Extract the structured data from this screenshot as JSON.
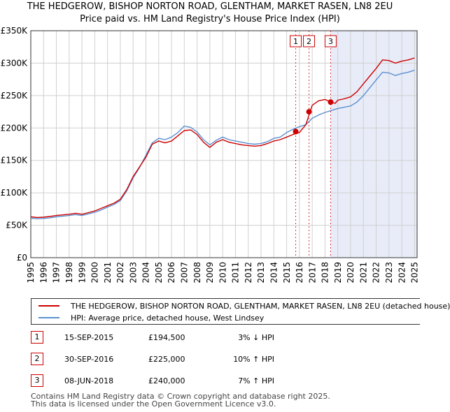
{
  "header": {
    "title_line1": "THE HEDGEROW, BISHOP NORTON ROAD, GLENTHAM, MARKET RASEN, LN8 2EU",
    "title_line2": "Price paid vs. HM Land Registry's House Price Index (HPI)"
  },
  "chart_data": {
    "type": "line",
    "x_start": 1995,
    "x_end": 2025.2,
    "xlim": [
      1995,
      2025.2
    ],
    "ylim": [
      0,
      350000
    ],
    "yticks": [
      0,
      50000,
      100000,
      150000,
      200000,
      250000,
      300000,
      350000
    ],
    "ytick_labels": [
      "£0",
      "£50K",
      "£100K",
      "£150K",
      "£200K",
      "£250K",
      "£300K",
      "£350K"
    ],
    "xtick_labels": [
      "1995",
      "1996",
      "1997",
      "1998",
      "1999",
      "2000",
      "2001",
      "2002",
      "2003",
      "2004",
      "2005",
      "2006",
      "2007",
      "2008",
      "2009",
      "2010",
      "2011",
      "2012",
      "2013",
      "2014",
      "2015",
      "2016",
      "2017",
      "2018",
      "2019",
      "2020",
      "2021",
      "2022",
      "2023",
      "2024",
      "2025"
    ],
    "grid": true,
    "shaded_from": 2018.44,
    "series": [
      {
        "name": "THE HEDGEROW, BISHOP NORTON ROAD, GLENTHAM, MARKET RASEN, LN8 2EU (detached house)",
        "color": "#cc0000",
        "points": [
          [
            1995,
            63000
          ],
          [
            1995.5,
            62000
          ],
          [
            1996,
            62500
          ],
          [
            1996.5,
            63500
          ],
          [
            1997,
            65000
          ],
          [
            1997.5,
            66000
          ],
          [
            1998,
            67000
          ],
          [
            1998.5,
            68500
          ],
          [
            1999,
            67000
          ],
          [
            1999.5,
            69500
          ],
          [
            2000,
            72000
          ],
          [
            2000.5,
            76000
          ],
          [
            2001,
            80000
          ],
          [
            2001.5,
            84000
          ],
          [
            2002,
            90000
          ],
          [
            2002.5,
            105000
          ],
          [
            2003,
            125000
          ],
          [
            2003.5,
            140000
          ],
          [
            2004,
            155000
          ],
          [
            2004.5,
            175000
          ],
          [
            2005,
            180000
          ],
          [
            2005.5,
            177000
          ],
          [
            2006,
            180000
          ],
          [
            2006.5,
            188000
          ],
          [
            2007,
            196000
          ],
          [
            2007.5,
            197000
          ],
          [
            2008,
            190000
          ],
          [
            2008.5,
            178000
          ],
          [
            2009,
            170000
          ],
          [
            2009.5,
            178000
          ],
          [
            2010,
            182000
          ],
          [
            2010.5,
            178000
          ],
          [
            2011,
            176000
          ],
          [
            2011.5,
            174000
          ],
          [
            2012,
            173000
          ],
          [
            2012.5,
            172000
          ],
          [
            2013,
            173000
          ],
          [
            2013.5,
            176000
          ],
          [
            2014,
            180000
          ],
          [
            2014.5,
            182000
          ],
          [
            2015,
            186000
          ],
          [
            2015.5,
            190000
          ],
          [
            2016,
            193000
          ],
          [
            2016.5,
            205000
          ],
          [
            2017,
            235000
          ],
          [
            2017.5,
            242000
          ],
          [
            2018,
            244000
          ],
          [
            2018.44,
            240000
          ],
          [
            2018.8,
            238000
          ],
          [
            2019,
            243000
          ],
          [
            2019.5,
            245000
          ],
          [
            2020,
            248000
          ],
          [
            2020.5,
            256000
          ],
          [
            2021,
            268000
          ],
          [
            2021.5,
            280000
          ],
          [
            2022,
            292000
          ],
          [
            2022.5,
            305000
          ],
          [
            2023,
            304000
          ],
          [
            2023.5,
            300000
          ],
          [
            2024,
            303000
          ],
          [
            2024.5,
            305000
          ],
          [
            2025,
            308000
          ]
        ]
      },
      {
        "name": "HPI: Average price, detached house, West Lindsey",
        "color": "#5b8fd0",
        "points": [
          [
            1995,
            61000
          ],
          [
            1995.5,
            60000
          ],
          [
            1996,
            60500
          ],
          [
            1996.5,
            61500
          ],
          [
            1997,
            63000
          ],
          [
            1997.5,
            64000
          ],
          [
            1998,
            65000
          ],
          [
            1998.5,
            66500
          ],
          [
            1999,
            65000
          ],
          [
            1999.5,
            67500
          ],
          [
            2000,
            70000
          ],
          [
            2000.5,
            73500
          ],
          [
            2001,
            78000
          ],
          [
            2001.5,
            82000
          ],
          [
            2002,
            88000
          ],
          [
            2002.5,
            103000
          ],
          [
            2003,
            123000
          ],
          [
            2003.5,
            139000
          ],
          [
            2004,
            158000
          ],
          [
            2004.5,
            177000
          ],
          [
            2005,
            184000
          ],
          [
            2005.5,
            182000
          ],
          [
            2006,
            186000
          ],
          [
            2006.5,
            193000
          ],
          [
            2007,
            203000
          ],
          [
            2007.5,
            201000
          ],
          [
            2008,
            194000
          ],
          [
            2008.5,
            182000
          ],
          [
            2009,
            174000
          ],
          [
            2009.5,
            181000
          ],
          [
            2010,
            186000
          ],
          [
            2010.5,
            182000
          ],
          [
            2011,
            180000
          ],
          [
            2011.5,
            178000
          ],
          [
            2012,
            176000
          ],
          [
            2012.5,
            175000
          ],
          [
            2013,
            176000
          ],
          [
            2013.5,
            179000
          ],
          [
            2014,
            184000
          ],
          [
            2014.5,
            186000
          ],
          [
            2015,
            193000
          ],
          [
            2015.5,
            198000
          ],
          [
            2016,
            202000
          ],
          [
            2016.5,
            205000
          ],
          [
            2017,
            215000
          ],
          [
            2017.5,
            220000
          ],
          [
            2018,
            224000
          ],
          [
            2018.5,
            227000
          ],
          [
            2019,
            230000
          ],
          [
            2019.5,
            232000
          ],
          [
            2020,
            234000
          ],
          [
            2020.5,
            240000
          ],
          [
            2021,
            250000
          ],
          [
            2021.5,
            262000
          ],
          [
            2022,
            274000
          ],
          [
            2022.5,
            286000
          ],
          [
            2023,
            285000
          ],
          [
            2023.5,
            281000
          ],
          [
            2024,
            284000
          ],
          [
            2024.5,
            286000
          ],
          [
            2025,
            289000
          ]
        ]
      }
    ],
    "sales": [
      {
        "num": "1",
        "x": 2015.71,
        "price": 194500
      },
      {
        "num": "2",
        "x": 2016.75,
        "price": 225000
      },
      {
        "num": "3",
        "x": 2018.44,
        "price": 240000
      }
    ]
  },
  "legend": {
    "property_label": "THE HEDGEROW, BISHOP NORTON ROAD, GLENTHAM, MARKET RASEN, LN8 2EU (detached house)",
    "hpi_label": "HPI: Average price, detached house, West Lindsey",
    "property_color": "#cc0000",
    "hpi_color": "#5b8fd0"
  },
  "transactions": [
    {
      "num": "1",
      "date": "15-SEP-2015",
      "price": "£194,500",
      "hpi": "3% ↓ HPI"
    },
    {
      "num": "2",
      "date": "30-SEP-2016",
      "price": "£225,000",
      "hpi": "10% ↑ HPI"
    },
    {
      "num": "3",
      "date": "08-JUN-2018",
      "price": "£240,000",
      "hpi": "7% ↑ HPI"
    }
  ],
  "footer": {
    "line1": "Contains HM Land Registry data © Crown copyright and database right 2025.",
    "line2": "This data is licensed under the Open Government Licence v3.0."
  }
}
